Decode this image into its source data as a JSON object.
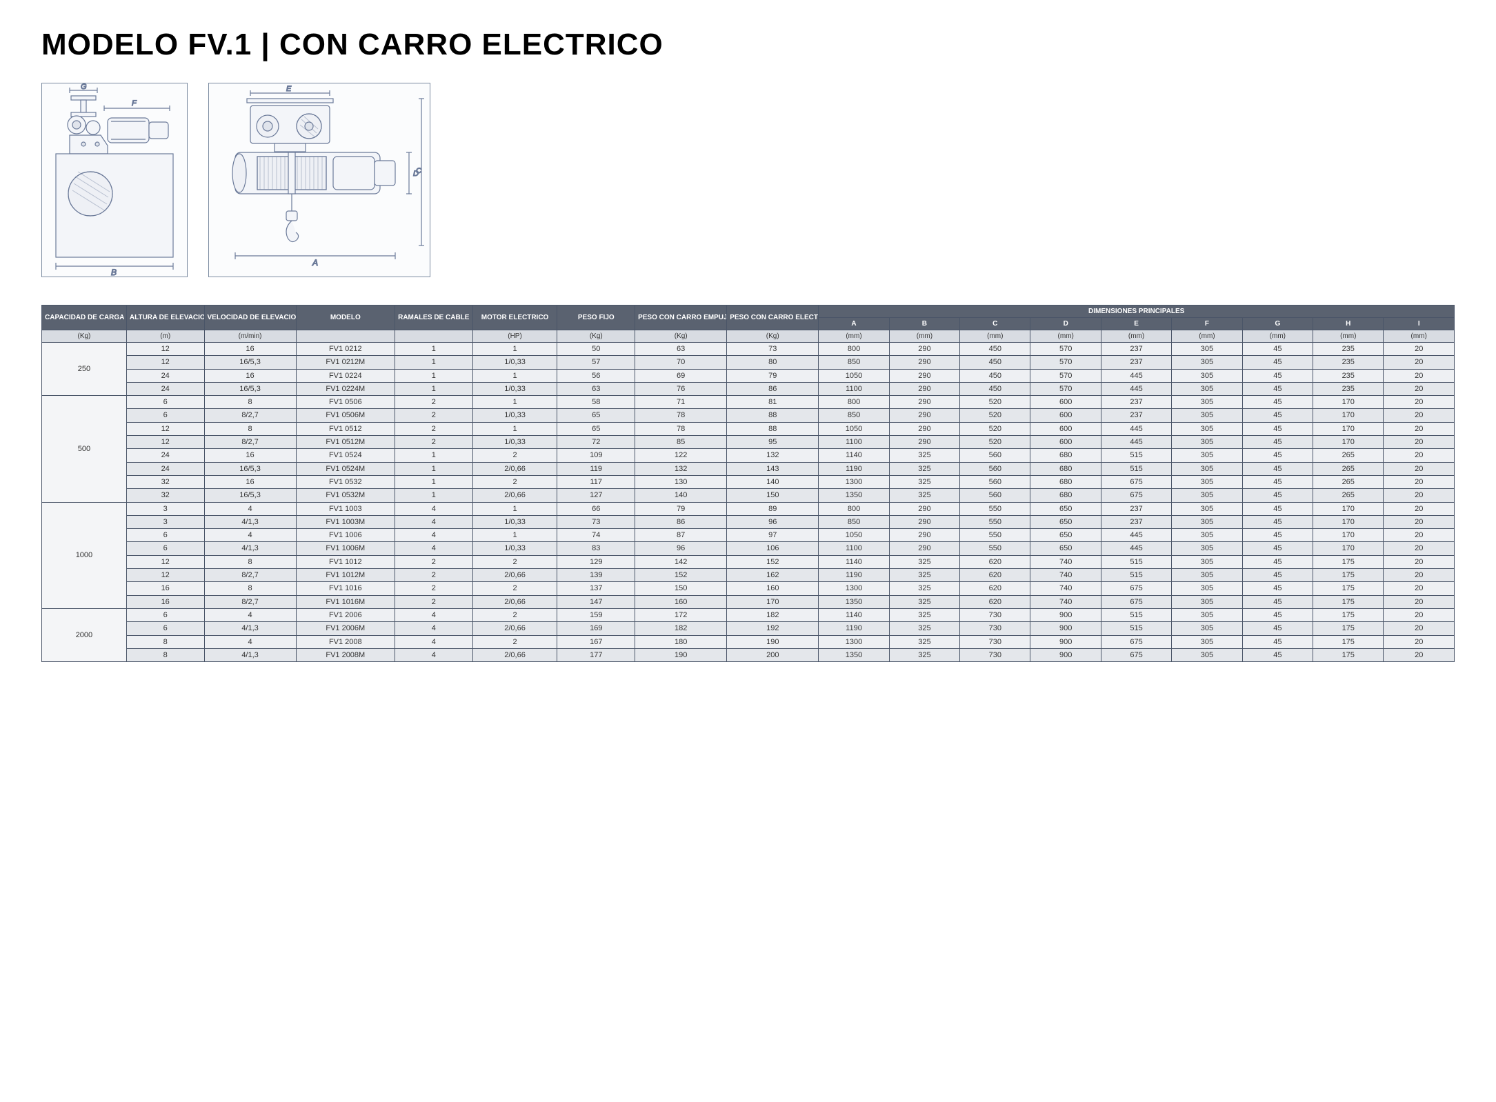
{
  "title": "MODELO FV.1 | CON CARRO ELECTRICO",
  "diagram": {
    "labels": {
      "A": "A",
      "B": "B",
      "C": "C",
      "D": "D",
      "E": "E",
      "F": "F",
      "G": "G"
    },
    "stroke": "#6b7a99",
    "fill": "#f3f5f9",
    "hatch": "#b8c0d0"
  },
  "table": {
    "header_bg": "#5a6270",
    "header_fg": "#ffffff",
    "unit_bg": "#d8dce2",
    "row_bg_a": "#eef0f3",
    "row_bg_b": "#e4e7eb",
    "border": "#4a5568",
    "columns_top": [
      "CAPACIDAD DE CARGA",
      "ALTURA DE ELEVACION",
      "VELOCIDAD DE ELEVACION",
      "MODELO",
      "RAMALES DE CABLE",
      "MOTOR ELECTRICO",
      "PESO FIJO",
      "PESO CON CARRO EMPUJE",
      "PESO CON CARRO ELECTRICO"
    ],
    "dim_header": "DIMENSIONES PRINCIPALES",
    "dim_cols": [
      "A",
      "B",
      "C",
      "D",
      "E",
      "F",
      "G",
      "H",
      "I"
    ],
    "units": [
      "(Kg)",
      "(m)",
      "(m/min)",
      "",
      "",
      "(HP)",
      "(Kg)",
      "(Kg)",
      "(Kg)",
      "(mm)",
      "(mm)",
      "(mm)",
      "(mm)",
      "(mm)",
      "(mm)",
      "(mm)",
      "(mm)",
      "(mm)"
    ],
    "groups": [
      {
        "capacity": "250",
        "rows": [
          [
            "12",
            "16",
            "FV1 0212",
            "1",
            "1",
            "50",
            "63",
            "73",
            "800",
            "290",
            "450",
            "570",
            "237",
            "305",
            "45",
            "235",
            "20"
          ],
          [
            "12",
            "16/5,3",
            "FV1 0212M",
            "1",
            "1/0,33",
            "57",
            "70",
            "80",
            "850",
            "290",
            "450",
            "570",
            "237",
            "305",
            "45",
            "235",
            "20"
          ],
          [
            "24",
            "16",
            "FV1 0224",
            "1",
            "1",
            "56",
            "69",
            "79",
            "1050",
            "290",
            "450",
            "570",
            "445",
            "305",
            "45",
            "235",
            "20"
          ],
          [
            "24",
            "16/5,3",
            "FV1 0224M",
            "1",
            "1/0,33",
            "63",
            "76",
            "86",
            "1100",
            "290",
            "450",
            "570",
            "445",
            "305",
            "45",
            "235",
            "20"
          ]
        ]
      },
      {
        "capacity": "500",
        "rows": [
          [
            "6",
            "8",
            "FV1 0506",
            "2",
            "1",
            "58",
            "71",
            "81",
            "800",
            "290",
            "520",
            "600",
            "237",
            "305",
            "45",
            "170",
            "20"
          ],
          [
            "6",
            "8/2,7",
            "FV1 0506M",
            "2",
            "1/0,33",
            "65",
            "78",
            "88",
            "850",
            "290",
            "520",
            "600",
            "237",
            "305",
            "45",
            "170",
            "20"
          ],
          [
            "12",
            "8",
            "FV1 0512",
            "2",
            "1",
            "65",
            "78",
            "88",
            "1050",
            "290",
            "520",
            "600",
            "445",
            "305",
            "45",
            "170",
            "20"
          ],
          [
            "12",
            "8/2,7",
            "FV1 0512M",
            "2",
            "1/0,33",
            "72",
            "85",
            "95",
            "1100",
            "290",
            "520",
            "600",
            "445",
            "305",
            "45",
            "170",
            "20"
          ],
          [
            "24",
            "16",
            "FV1 0524",
            "1",
            "2",
            "109",
            "122",
            "132",
            "1140",
            "325",
            "560",
            "680",
            "515",
            "305",
            "45",
            "265",
            "20"
          ],
          [
            "24",
            "16/5,3",
            "FV1 0524M",
            "1",
            "2/0,66",
            "119",
            "132",
            "143",
            "1190",
            "325",
            "560",
            "680",
            "515",
            "305",
            "45",
            "265",
            "20"
          ],
          [
            "32",
            "16",
            "FV1 0532",
            "1",
            "2",
            "117",
            "130",
            "140",
            "1300",
            "325",
            "560",
            "680",
            "675",
            "305",
            "45",
            "265",
            "20"
          ],
          [
            "32",
            "16/5,3",
            "FV1 0532M",
            "1",
            "2/0,66",
            "127",
            "140",
            "150",
            "1350",
            "325",
            "560",
            "680",
            "675",
            "305",
            "45",
            "265",
            "20"
          ]
        ]
      },
      {
        "capacity": "1000",
        "rows": [
          [
            "3",
            "4",
            "FV1 1003",
            "4",
            "1",
            "66",
            "79",
            "89",
            "800",
            "290",
            "550",
            "650",
            "237",
            "305",
            "45",
            "170",
            "20"
          ],
          [
            "3",
            "4/1,3",
            "FV1 1003M",
            "4",
            "1/0,33",
            "73",
            "86",
            "96",
            "850",
            "290",
            "550",
            "650",
            "237",
            "305",
            "45",
            "170",
            "20"
          ],
          [
            "6",
            "4",
            "FV1 1006",
            "4",
            "1",
            "74",
            "87",
            "97",
            "1050",
            "290",
            "550",
            "650",
            "445",
            "305",
            "45",
            "170",
            "20"
          ],
          [
            "6",
            "4/1,3",
            "FV1 1006M",
            "4",
            "1/0,33",
            "83",
            "96",
            "106",
            "1100",
            "290",
            "550",
            "650",
            "445",
            "305",
            "45",
            "170",
            "20"
          ],
          [
            "12",
            "8",
            "FV1 1012",
            "2",
            "2",
            "129",
            "142",
            "152",
            "1140",
            "325",
            "620",
            "740",
            "515",
            "305",
            "45",
            "175",
            "20"
          ],
          [
            "12",
            "8/2,7",
            "FV1 1012M",
            "2",
            "2/0,66",
            "139",
            "152",
            "162",
            "1190",
            "325",
            "620",
            "740",
            "515",
            "305",
            "45",
            "175",
            "20"
          ],
          [
            "16",
            "8",
            "FV1 1016",
            "2",
            "2",
            "137",
            "150",
            "160",
            "1300",
            "325",
            "620",
            "740",
            "675",
            "305",
            "45",
            "175",
            "20"
          ],
          [
            "16",
            "8/2,7",
            "FV1 1016M",
            "2",
            "2/0,66",
            "147",
            "160",
            "170",
            "1350",
            "325",
            "620",
            "740",
            "675",
            "305",
            "45",
            "175",
            "20"
          ]
        ]
      },
      {
        "capacity": "2000",
        "rows": [
          [
            "6",
            "4",
            "FV1 2006",
            "4",
            "2",
            "159",
            "172",
            "182",
            "1140",
            "325",
            "730",
            "900",
            "515",
            "305",
            "45",
            "175",
            "20"
          ],
          [
            "6",
            "4/1,3",
            "FV1 2006M",
            "4",
            "2/0,66",
            "169",
            "182",
            "192",
            "1190",
            "325",
            "730",
            "900",
            "515",
            "305",
            "45",
            "175",
            "20"
          ],
          [
            "8",
            "4",
            "FV1 2008",
            "4",
            "2",
            "167",
            "180",
            "190",
            "1300",
            "325",
            "730",
            "900",
            "675",
            "305",
            "45",
            "175",
            "20"
          ],
          [
            "8",
            "4/1,3",
            "FV1 2008M",
            "4",
            "2/0,66",
            "177",
            "190",
            "200",
            "1350",
            "325",
            "730",
            "900",
            "675",
            "305",
            "45",
            "175",
            "20"
          ]
        ]
      }
    ]
  }
}
